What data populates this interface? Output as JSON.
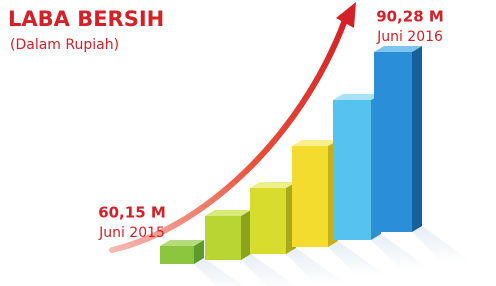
{
  "header": {
    "title": "LABA BERSIH",
    "subtitle": "(Dalam Rupiah)"
  },
  "start": {
    "amount": "60,15 M",
    "period": "Juni 2015"
  },
  "end": {
    "amount": "90,28 M",
    "period": "Juni 2016"
  }
}
